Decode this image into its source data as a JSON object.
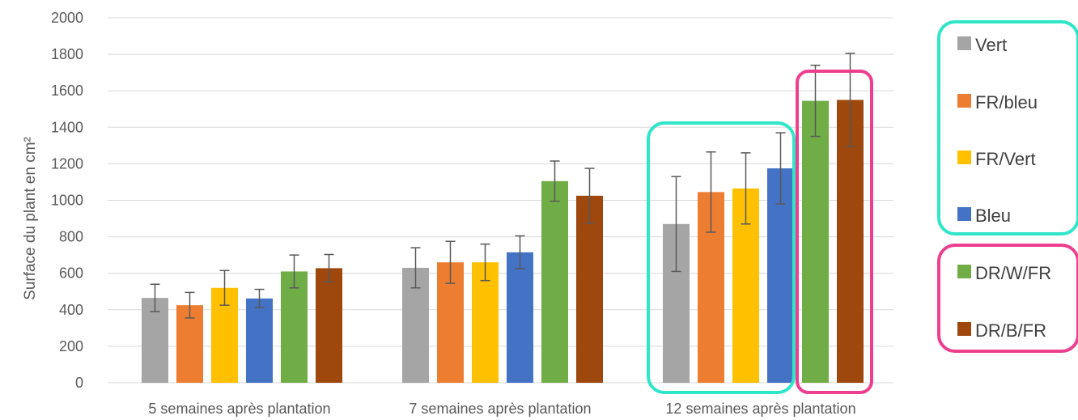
{
  "chart_data": {
    "type": "bar",
    "title": "",
    "xlabel": "",
    "ylabel": "Surface du plant en cm²",
    "ylim": [
      0,
      2000
    ],
    "yticks": [
      0,
      200,
      400,
      600,
      800,
      1000,
      1200,
      1400,
      1600,
      1800,
      2000
    ],
    "grid": true,
    "legend_position": "right",
    "categories": [
      "5 semaines après plantation",
      "7 semaines après plantation",
      "12 semaines après plantation"
    ],
    "series": [
      {
        "name": "Vert",
        "color": "#a5a5a5",
        "values": [
          465,
          630,
          870
        ],
        "error": [
          75,
          110,
          260
        ]
      },
      {
        "name": "FR/bleu",
        "color": "#ed7d31",
        "values": [
          425,
          660,
          1045
        ],
        "error": [
          70,
          115,
          220
        ]
      },
      {
        "name": "FR/Vert",
        "color": "#ffc000",
        "values": [
          520,
          660,
          1065
        ],
        "error": [
          95,
          100,
          195
        ]
      },
      {
        "name": "Bleu",
        "color": "#4472c4",
        "values": [
          462,
          715,
          1175
        ],
        "error": [
          50,
          90,
          195
        ]
      },
      {
        "name": "DR/W/FR",
        "color": "#70ad47",
        "values": [
          610,
          1105,
          1545
        ],
        "error": [
          90,
          110,
          195
        ]
      },
      {
        "name": "DR/B/FR",
        "color": "#9e480e",
        "values": [
          628,
          1025,
          1550
        ],
        "error": [
          75,
          150,
          255
        ]
      }
    ],
    "highlight_colors": {
      "teal": "#2fe6c8",
      "pink": "#ee3f8f"
    }
  }
}
